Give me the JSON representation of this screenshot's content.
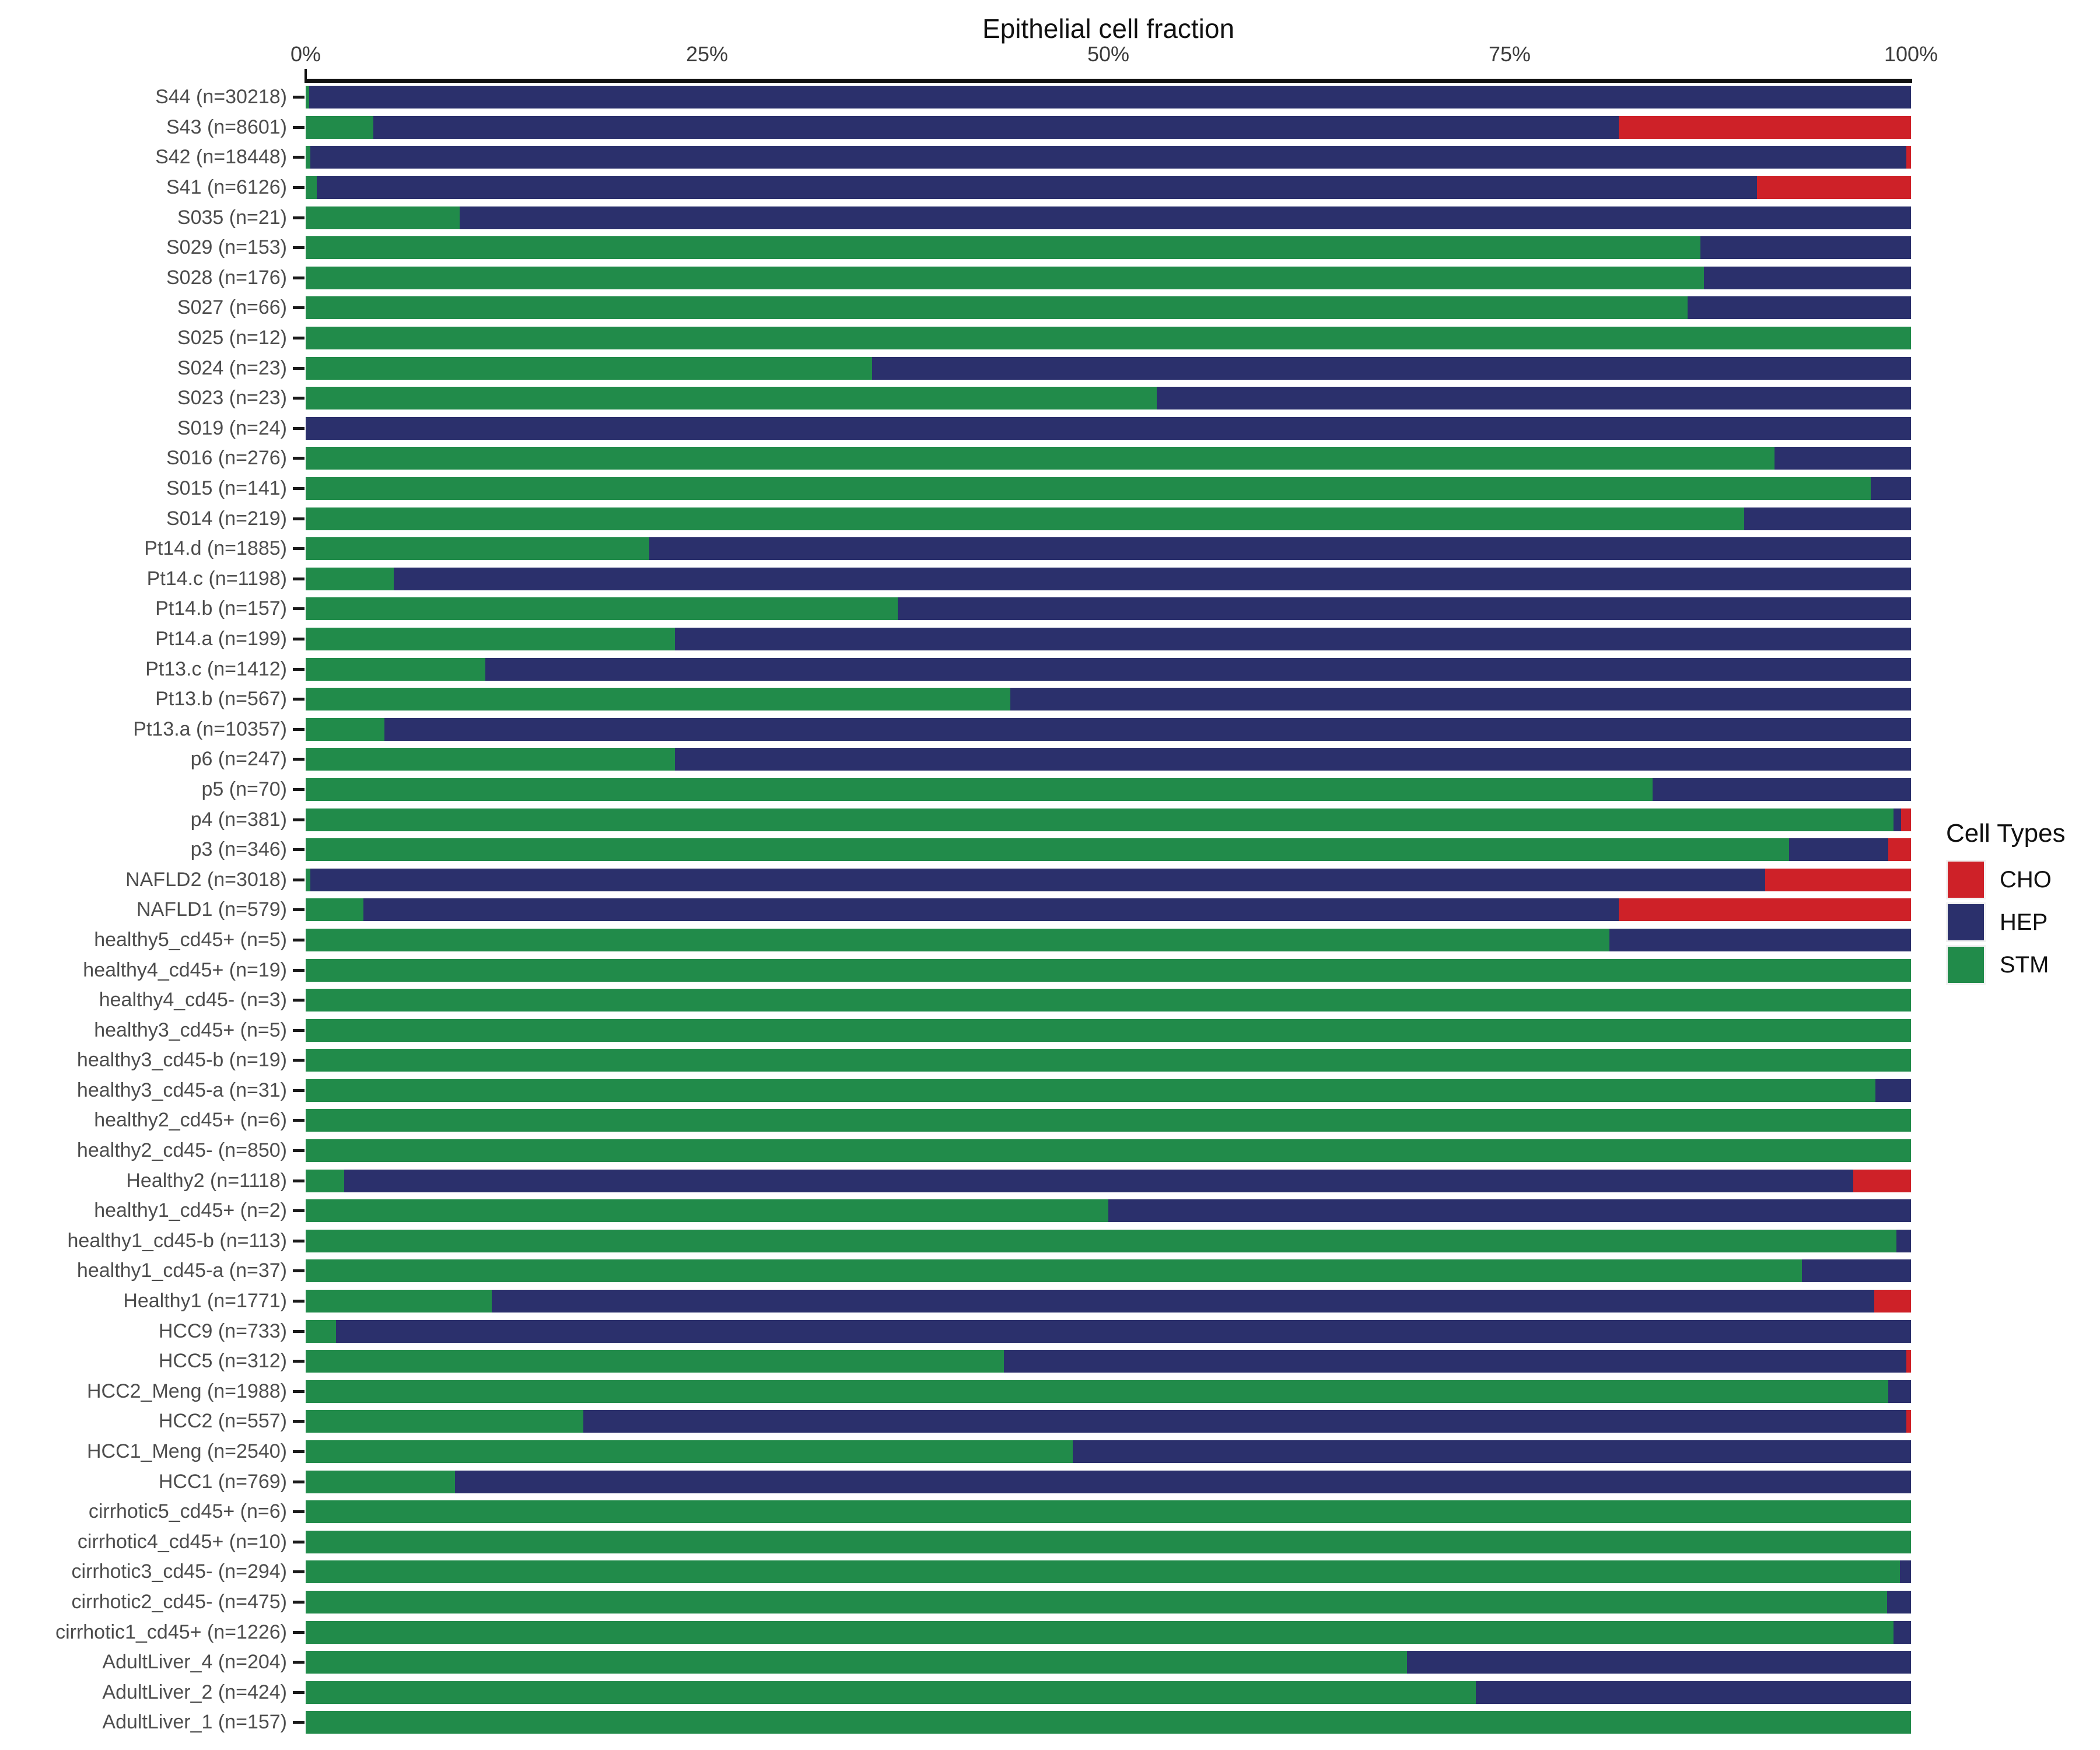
{
  "title": "Epithelial cell fraction",
  "axis": {
    "ticks": [
      {
        "label": "0%",
        "pct": 0
      },
      {
        "label": "25%",
        "pct": 25
      },
      {
        "label": "50%",
        "pct": 50
      },
      {
        "label": "75%",
        "pct": 75
      },
      {
        "label": "100%",
        "pct": 100
      }
    ]
  },
  "legend": {
    "title": "Cell Types",
    "items": [
      {
        "label": "CHO",
        "color": "#CE2128"
      },
      {
        "label": "HEP",
        "color": "#2B306C"
      },
      {
        "label": "STM",
        "color": "#218B4A"
      }
    ]
  },
  "chart_data": {
    "type": "bar",
    "orientation": "horizontal-stacked",
    "title": "Epithelial cell fraction",
    "xlabel": "",
    "ylabel": "",
    "xlim": [
      0,
      100
    ],
    "x_tick_labels": [
      "0%",
      "25%",
      "50%",
      "75%",
      "100%"
    ],
    "legend_position": "right",
    "grid": false,
    "units": "percent of cells per sample",
    "categories": [
      "S44 (n=30218)",
      "S43 (n=8601)",
      "S42 (n=18448)",
      "S41 (n=6126)",
      "S035 (n=21)",
      "S029 (n=153)",
      "S028 (n=176)",
      "S027 (n=66)",
      "S025 (n=12)",
      "S024 (n=23)",
      "S023 (n=23)",
      "S019 (n=24)",
      "S016 (n=276)",
      "S015 (n=141)",
      "S014 (n=219)",
      "Pt14.d (n=1885)",
      "Pt14.c (n=1198)",
      "Pt14.b (n=157)",
      "Pt14.a (n=199)",
      "Pt13.c (n=1412)",
      "Pt13.b (n=567)",
      "Pt13.a (n=10357)",
      "p6 (n=247)",
      "p5 (n=70)",
      "p4 (n=381)",
      "p3 (n=346)",
      "NAFLD2 (n=3018)",
      "NAFLD1 (n=579)",
      "healthy5_cd45+ (n=5)",
      "healthy4_cd45+ (n=19)",
      "healthy4_cd45- (n=3)",
      "healthy3_cd45+ (n=5)",
      "healthy3_cd45-b (n=19)",
      "healthy3_cd45-a (n=31)",
      "healthy2_cd45+ (n=6)",
      "healthy2_cd45- (n=850)",
      "Healthy2 (n=1118)",
      "healthy1_cd45+ (n=2)",
      "healthy1_cd45-b (n=113)",
      "healthy1_cd45-a (n=37)",
      "Healthy1 (n=1771)",
      "HCC9 (n=733)",
      "HCC5 (n=312)",
      "HCC2_Meng (n=1988)",
      "HCC2 (n=557)",
      "HCC1_Meng (n=2540)",
      "HCC1 (n=769)",
      "cirrhotic5_cd45+ (n=6)",
      "cirrhotic4_cd45+ (n=10)",
      "cirrhotic3_cd45- (n=294)",
      "cirrhotic2_cd45- (n=475)",
      "cirrhotic1_cd45+ (n=1226)",
      "AdultLiver_4 (n=204)",
      "AdultLiver_2 (n=424)",
      "AdultLiver_1 (n=157)"
    ],
    "series": [
      {
        "name": "STM",
        "color": "#218B4A",
        "values": [
          0.2,
          4.2,
          0.3,
          0.7,
          9.6,
          86.9,
          87.1,
          86.1,
          100,
          35.3,
          53.0,
          0,
          91.5,
          97.5,
          89.6,
          21.4,
          5.5,
          36.9,
          23.0,
          11.2,
          43.9,
          4.9,
          23.0,
          83.9,
          98.9,
          92.4,
          0.3,
          3.6,
          81.2,
          100,
          100,
          100,
          100,
          97.8,
          100,
          100,
          2.4,
          50,
          99.1,
          93.2,
          11.6,
          1.9,
          43.5,
          98.6,
          17.3,
          47.8,
          9.3,
          100,
          100,
          99.3,
          98.5,
          98.9,
          68.6,
          72.9,
          100
        ]
      },
      {
        "name": "HEP",
        "color": "#2B306C",
        "values": [
          99.8,
          77.6,
          99.4,
          89.7,
          90.4,
          13.1,
          12.9,
          13.9,
          0,
          64.7,
          47.0,
          100,
          8.5,
          2.5,
          10.4,
          78.6,
          94.5,
          63.1,
          77.0,
          88.8,
          56.1,
          95.1,
          77.0,
          16.1,
          0.5,
          6.2,
          90.6,
          78.2,
          18.8,
          0,
          0,
          0,
          0,
          2.2,
          0,
          0,
          94.0,
          50,
          0.9,
          6.8,
          86.1,
          98.1,
          56.2,
          1.4,
          82.4,
          52.2,
          90.7,
          0,
          0,
          0.7,
          1.5,
          1.1,
          31.4,
          27.1,
          0
        ]
      },
      {
        "name": "CHO",
        "color": "#CE2128",
        "values": [
          0,
          18.2,
          0.3,
          9.6,
          0,
          0,
          0,
          0,
          0,
          0,
          0,
          0,
          0,
          0,
          0,
          0,
          0,
          0,
          0,
          0,
          0,
          0,
          0,
          0,
          0.6,
          1.4,
          9.1,
          18.2,
          0,
          0,
          0,
          0,
          0,
          0,
          0,
          0,
          3.6,
          0,
          0,
          0,
          2.3,
          0,
          0.3,
          0,
          0.3,
          0,
          0,
          0,
          0,
          0,
          0,
          0,
          0,
          0,
          0
        ]
      }
    ]
  }
}
